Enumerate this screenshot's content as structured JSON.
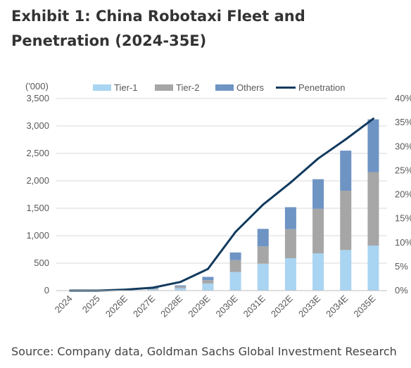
{
  "title": "Exhibit 1: China Robotaxi Fleet and Penetration (2024-35E)",
  "source": "Source: Company data, Goldman Sachs Global Investment Research",
  "chart_data": {
    "type": "bar",
    "stacked": true,
    "categories": [
      "2024",
      "2025",
      "2026E",
      "2027E",
      "2028E",
      "2029E",
      "2030E",
      "2031E",
      "2032E",
      "2033E",
      "2034E",
      "2035E"
    ],
    "series": [
      {
        "name": "Tier-1",
        "color": "#a9d4f2",
        "values": [
          2,
          4,
          12,
          25,
          45,
          130,
          340,
          490,
          590,
          680,
          740,
          820
        ]
      },
      {
        "name": "Tier-2",
        "color": "#a6a6a6",
        "values": [
          1,
          2,
          6,
          15,
          30,
          60,
          215,
          315,
          530,
          810,
          1080,
          1340
        ]
      },
      {
        "name": "Others",
        "color": "#6e94c4",
        "values": [
          1,
          1,
          4,
          10,
          20,
          60,
          140,
          320,
          400,
          540,
          730,
          960
        ]
      }
    ],
    "line": {
      "name": "Penetration",
      "color": "#123a5e",
      "values": [
        0.0,
        0.0,
        0.2,
        0.6,
        1.8,
        4.5,
        12.2,
        17.9,
        22.5,
        27.5,
        31.5,
        35.8
      ]
    },
    "ylabel_left": "('000)",
    "yticks_left": [
      "0",
      "500",
      "1,000",
      "1,500",
      "2,000",
      "2,500",
      "3,000",
      "3,500"
    ],
    "ylim_left": [
      0,
      3500
    ],
    "yticks_right": [
      "0%",
      "5%",
      "10%",
      "15%",
      "20%",
      "25%",
      "30%",
      "35%",
      "40%"
    ],
    "ylim_right": [
      0,
      40
    ],
    "grid": true,
    "legend_position": "top"
  }
}
